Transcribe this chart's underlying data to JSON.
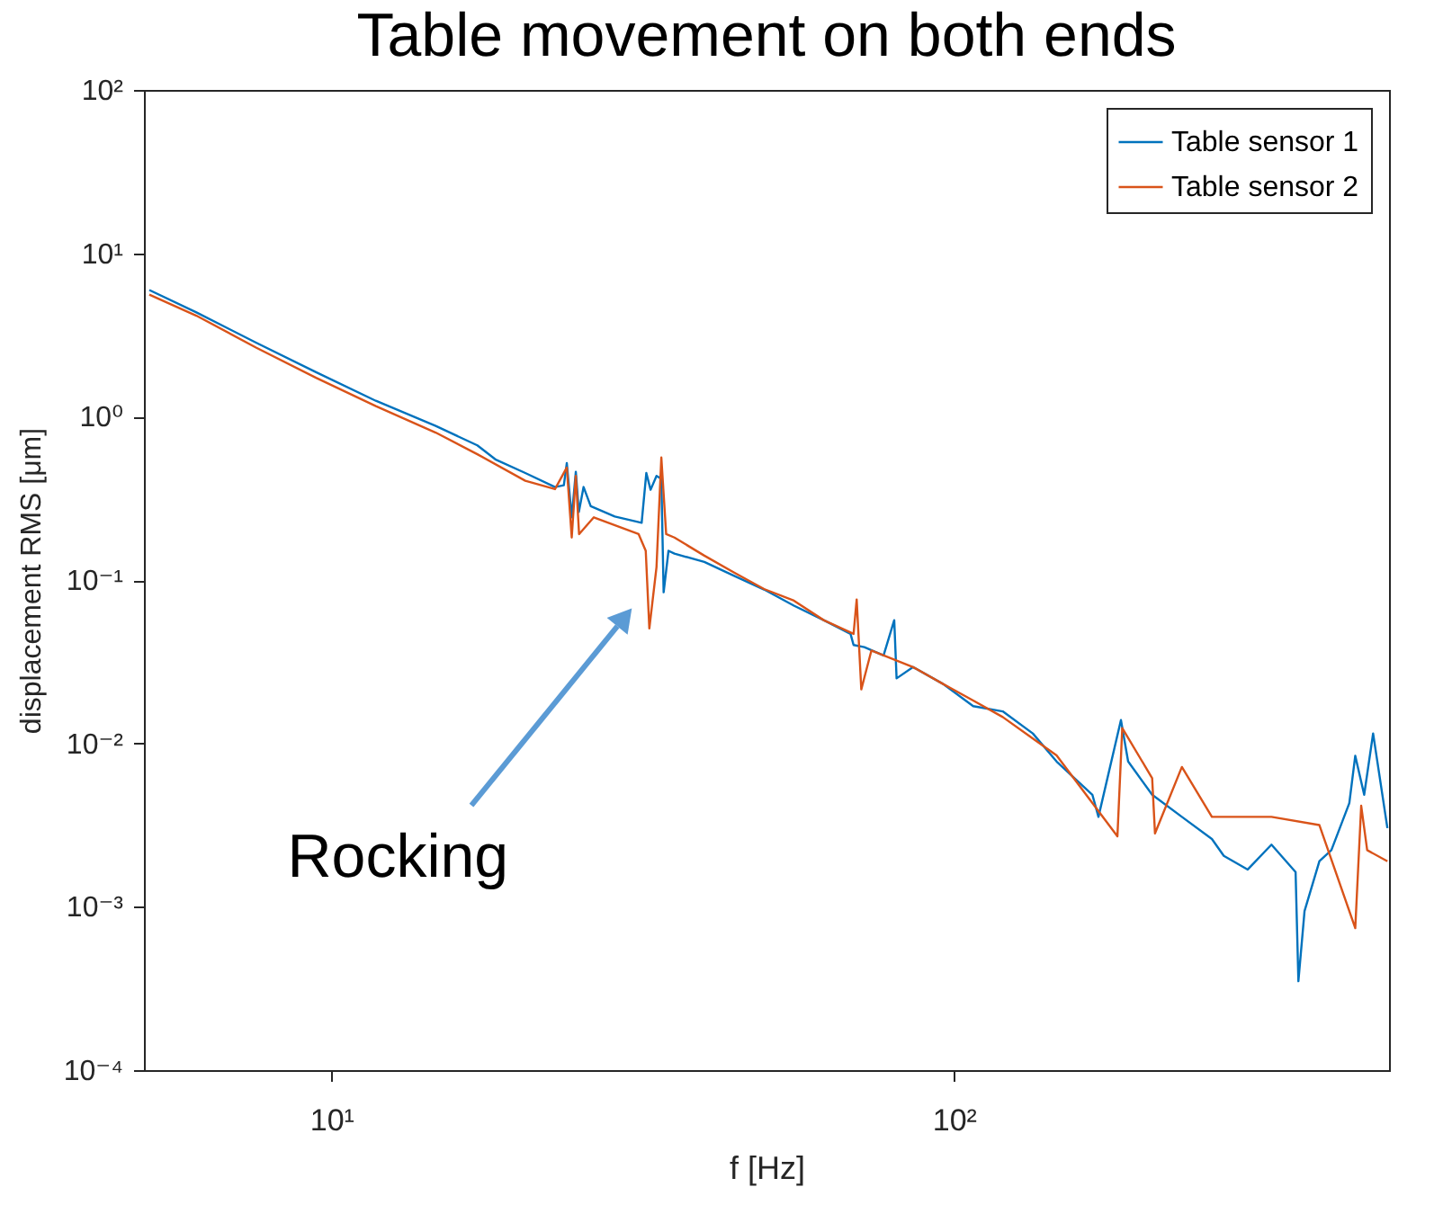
{
  "chart_data": {
    "type": "line",
    "title": "Table movement on both ends",
    "xlabel": "f [Hz]",
    "ylabel": "displacement RMS [μm]",
    "log": "xy",
    "xlim": [
      5,
      500
    ],
    "ylim": [
      0.0001,
      100
    ],
    "xticks": [
      {
        "value": 10,
        "label": "10¹"
      },
      {
        "value": 100,
        "label": "10²"
      }
    ],
    "yticks": [
      {
        "value": 0.0001,
        "label": "10⁻⁴"
      },
      {
        "value": 0.001,
        "label": "10⁻³"
      },
      {
        "value": 0.01,
        "label": "10⁻²"
      },
      {
        "value": 0.1,
        "label": "10⁻¹"
      },
      {
        "value": 1,
        "label": "10⁰"
      },
      {
        "value": 10,
        "label": "10¹"
      },
      {
        "value": 100,
        "label": "10²"
      }
    ],
    "grid": false,
    "legend": "top right",
    "line_style": "solid",
    "marker": "none",
    "annotations": [
      "Rocking"
    ],
    "series": [
      {
        "name": "Table sensor 1",
        "color": "#0072bd",
        "x": [
          5.1,
          6.07,
          7.58,
          9.45,
          11.79,
          14.71,
          17.16,
          18.34,
          20.49,
          22.87,
          23.63,
          23.89,
          24.33,
          24.7,
          24.98,
          25.42,
          26.1,
          28.53,
          31.51,
          32.06,
          32.57,
          33.29,
          33.89,
          34.18,
          34.8,
          35.57,
          39.73,
          44.37,
          49.55,
          55.34,
          61.78,
          68.23,
          69.0,
          71.8,
          77.1,
          80.2,
          80.9,
          86.0,
          96.1,
          107.4,
          119.8,
          133.9,
          146.2,
          166.9,
          170.7,
          185.5,
          190.5,
          208.2,
          232.4,
          259.7,
          271.4,
          296.5,
          323.7,
          353.9,
          357.6,
          365.8,
          386.5,
          404.0,
          431.7,
          441.3,
          456.1,
          471.4,
          497
        ],
        "values": [
          5.96,
          4.35,
          2.83,
          1.87,
          1.25,
          0.877,
          0.667,
          0.548,
          0.452,
          0.371,
          0.38,
          0.52,
          0.242,
          0.46,
          0.261,
          0.371,
          0.283,
          0.245,
          0.224,
          0.452,
          0.357,
          0.434,
          0.417,
          0.0841,
          0.151,
          0.145,
          0.129,
          0.106,
          0.0875,
          0.0697,
          0.0568,
          0.0468,
          0.04,
          0.0388,
          0.0345,
          0.0568,
          0.025,
          0.0293,
          0.0231,
          0.0169,
          0.0157,
          0.0115,
          0.00775,
          0.00485,
          0.00355,
          0.0139,
          0.00775,
          0.00485,
          0.00355,
          0.0026,
          0.00205,
          0.00169,
          0.0024,
          0.00163,
          0.00035,
          0.00094,
          0.0019,
          0.00222,
          0.00431,
          0.0084,
          0.00485,
          0.0115,
          0.00303
        ]
      },
      {
        "name": "Table sensor 2",
        "color": "#d95319",
        "x": [
          5.1,
          6.07,
          7.58,
          9.45,
          11.79,
          14.71,
          17.16,
          20.49,
          22.87,
          23.89,
          24.33,
          24.7,
          25.0,
          26.4,
          31.16,
          31.99,
          32.42,
          33.29,
          33.89,
          34.5,
          35.57,
          39.73,
          44.37,
          49.55,
          55.34,
          61.78,
          69.0,
          69.8,
          71.0,
          73.7,
          86.0,
          96.1,
          107.4,
          119.8,
          133.9,
          146.2,
          183.1,
          186.4,
          208.2,
          210.4,
          232.4,
          259.7,
          296.5,
          323.7,
          386.5,
          441.3,
          451.1,
          461.2,
          497
        ],
        "values": [
          5.59,
          4.15,
          2.64,
          1.73,
          1.16,
          0.799,
          0.589,
          0.405,
          0.36,
          0.488,
          0.182,
          0.434,
          0.191,
          0.242,
          0.191,
          0.151,
          0.0505,
          0.12,
          0.562,
          0.191,
          0.182,
          0.141,
          0.111,
          0.0881,
          0.0748,
          0.0568,
          0.0468,
          0.076,
          0.0214,
          0.037,
          0.0293,
          0.0231,
          0.0183,
          0.0145,
          0.0107,
          0.00845,
          0.0027,
          0.0124,
          0.00613,
          0.00281,
          0.00717,
          0.00355,
          0.00355,
          0.00355,
          0.00316,
          0.00074,
          0.00415,
          0.00222,
          0.0019
        ]
      }
    ]
  }
}
